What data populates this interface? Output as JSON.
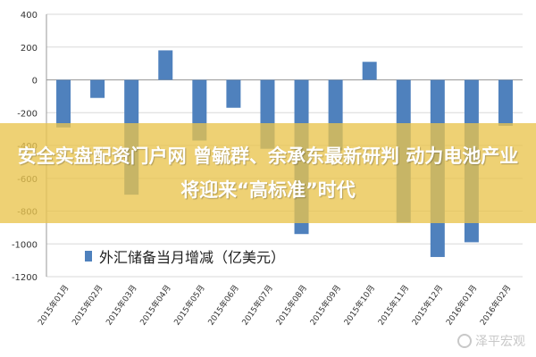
{
  "chart_data": {
    "type": "bar",
    "categories": [
      "2015年01月",
      "2015年02月",
      "2015年03月",
      "2015年04月",
      "2015年05月",
      "2015年06月",
      "2015年07月",
      "2015年08月",
      "2015年09月",
      "2015年10月",
      "2015年11月",
      "2015年12月",
      "2016年01月",
      "2016年02月"
    ],
    "series": [
      {
        "name": "外汇储备当月增减（亿美元）",
        "values": [
          -290,
          -110,
          -700,
          180,
          -370,
          -170,
          -420,
          -940,
          -430,
          110,
          -870,
          -1080,
          -990,
          -280
        ]
      }
    ],
    "ylim": [
      -1200,
      400
    ],
    "yticks": [
      400,
      200,
      0,
      -200,
      -400,
      -600,
      -800,
      -1000,
      -1200
    ],
    "grid": true,
    "legend_position": "bottom-left",
    "bar_color": "#4f81bd"
  },
  "overlay": {
    "headline": "安全实盘配资门户网 曾毓群、余承东最新研判 动力电池产业将迎来“高标准”时代"
  },
  "watermark": {
    "text": "泽平宏观"
  }
}
